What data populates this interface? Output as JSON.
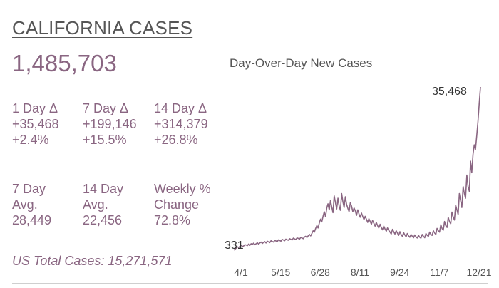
{
  "header": {
    "title": "CALIFORNIA CASES",
    "total_cases": "1,485,703"
  },
  "stats": [
    {
      "label": "1 Day Δ",
      "value": "+35,468",
      "pct": "+2.4%"
    },
    {
      "label": "7 Day Δ",
      "value": "+199,146",
      "pct": "+15.5%"
    },
    {
      "label": "14 Day Δ",
      "value": "+314,379",
      "pct": "+26.8%"
    }
  ],
  "averages": [
    {
      "label1": "7 Day",
      "label2": "Avg.",
      "value": "28,449"
    },
    {
      "label1": "14 Day",
      "label2": "Avg.",
      "value": "22,456"
    },
    {
      "label1": "Weekly %",
      "label2": "Change",
      "value": "72.8%"
    }
  ],
  "footer": {
    "us_total": "US Total Cases: 15,271,571"
  },
  "chart_data": {
    "type": "line",
    "title": "Day-Over-Day New Cases",
    "color": "#8a6682",
    "x_tick_labels": [
      "4/1",
      "5/15",
      "6/28",
      "8/11",
      "9/24",
      "11/7",
      "12/21"
    ],
    "start_label": "331",
    "end_label": "35,468",
    "ylim": [
      0,
      35468
    ],
    "values": [
      331,
      520,
      780,
      1020,
      900,
      1180,
      1360,
      1100,
      1250,
      1500,
      1420,
      1300,
      1650,
      1380,
      1700,
      1560,
      1820,
      1490,
      1700,
      1900,
      1620,
      1880,
      2050,
      1760,
      2000,
      2150,
      1880,
      2250,
      2100,
      1950,
      2350,
      2200,
      2050,
      2400,
      2300,
      2150,
      2550,
      2400,
      2250,
      2650,
      2500,
      2350,
      2700,
      2550,
      2450,
      2800,
      2650,
      2500,
      2900,
      2750,
      2600,
      2950,
      2850,
      2700,
      3050,
      2950,
      2800,
      3150,
      3300,
      3050,
      3400,
      3700,
      3400,
      3900,
      4500,
      4200,
      5000,
      5600,
      5100,
      6200,
      7000,
      6400,
      7600,
      8600,
      7500,
      9400,
      10300,
      9000,
      11000,
      9600,
      8400,
      12000,
      10500,
      9200,
      11500,
      9800,
      8900,
      12500,
      10800,
      9500,
      11800,
      10200,
      9300,
      8600,
      10500,
      9800,
      8600,
      9400,
      8800,
      7800,
      9000,
      8100,
      7400,
      8300,
      7600,
      6900,
      7600,
      7000,
      6300,
      7100,
      6500,
      5900,
      6700,
      6100,
      5500,
      6300,
      5600,
      5100,
      5900,
      5200,
      4700,
      5500,
      4900,
      4400,
      5100,
      4600,
      4200,
      3800,
      4800,
      4300,
      3800,
      4500,
      4000,
      3500,
      4300,
      3700,
      3300,
      4100,
      3600,
      3200,
      3900,
      3400,
      3100,
      3700,
      3300,
      3000,
      3600,
      3200,
      2950,
      3500,
      3100,
      2900,
      3700,
      3300,
      3000,
      3900,
      3500,
      3300,
      4200,
      3700,
      3500,
      4500,
      4000,
      3700,
      5000,
      4500,
      4200,
      5800,
      5000,
      4600,
      6500,
      5600,
      5200,
      7400,
      6500,
      6000,
      8500,
      7500,
      6800,
      10000,
      9000,
      8000,
      12500,
      11000,
      9500,
      14000,
      12500,
      11500,
      16500,
      14000,
      13000,
      19500,
      17000,
      21000,
      23000,
      22000,
      25000,
      28000,
      32000,
      35468
    ]
  }
}
